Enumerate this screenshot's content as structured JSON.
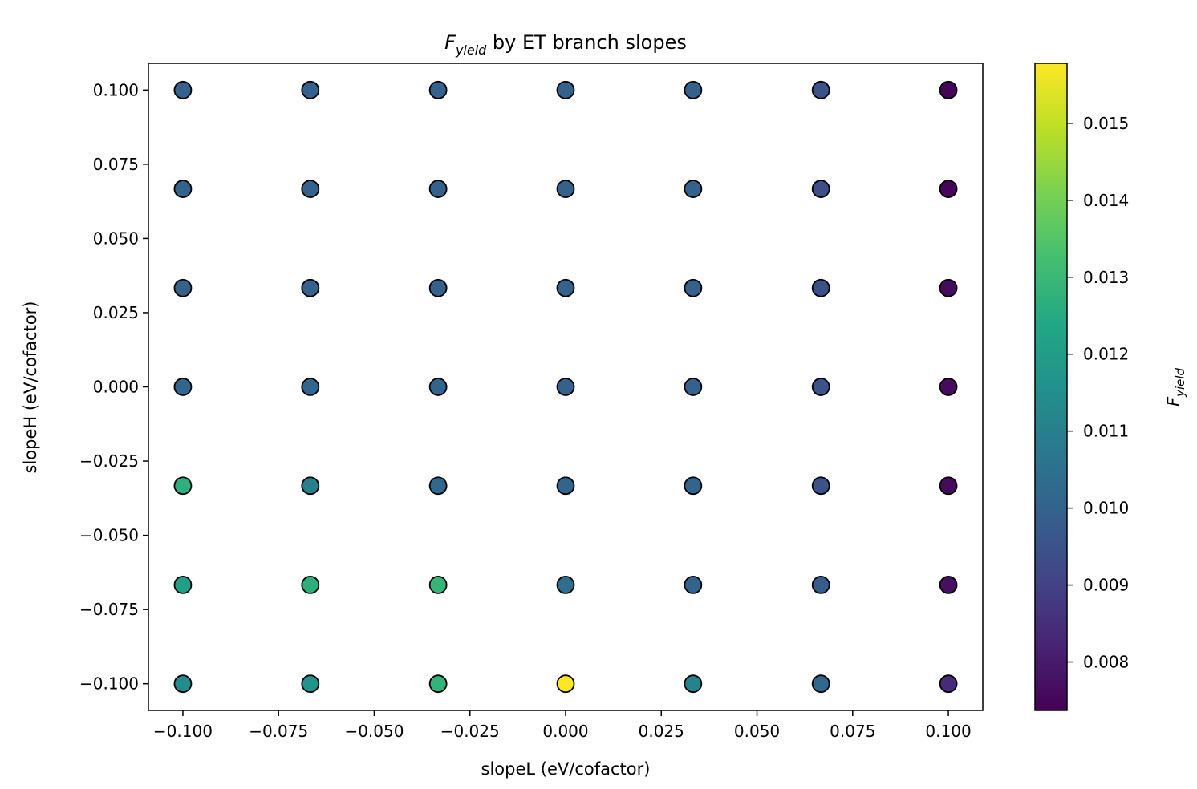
{
  "chart_data": {
    "type": "scatter",
    "title": {
      "symbol": "F",
      "subscript": "yield",
      "rest": " by ET branch slopes"
    },
    "xlabel": "slopeL (eV/cofactor)",
    "ylabel": "slopeH (eV/cofactor)",
    "colorbar_label": {
      "symbol": "F",
      "subscript": "yield"
    },
    "colormap": "viridis",
    "marker_edge_color": "#000000",
    "xlim": [
      -0.109,
      0.109
    ],
    "ylim": [
      -0.109,
      0.109
    ],
    "x_ticks": [
      -0.1,
      -0.075,
      -0.05,
      -0.025,
      0.0,
      0.025,
      0.05,
      0.075,
      0.1
    ],
    "x_tick_labels": [
      "−0.100",
      "−0.075",
      "−0.050",
      "−0.025",
      "0.000",
      "0.025",
      "0.050",
      "0.075",
      "0.100"
    ],
    "y_ticks": [
      0.1,
      0.075,
      0.05,
      0.025,
      0.0,
      -0.025,
      -0.05,
      -0.075,
      -0.1
    ],
    "y_tick_labels": [
      "0.100",
      "0.075",
      "0.050",
      "0.025",
      "0.000",
      "−0.025",
      "−0.050",
      "−0.075",
      "−0.100"
    ],
    "color_range": [
      0.00737,
      0.01578
    ],
    "colorbar_ticks": [
      0.015,
      0.014,
      0.013,
      0.012,
      0.011,
      0.01,
      0.009,
      0.008
    ],
    "colorbar_tick_labels": [
      "0.015",
      "0.014",
      "0.013",
      "0.012",
      "0.011",
      "0.010",
      "0.009",
      "0.008"
    ],
    "x": [
      -0.1,
      -0.0667,
      -0.0333,
      0.0,
      0.0333,
      0.0667,
      0.1
    ],
    "y": [
      0.1,
      0.0667,
      0.0333,
      0.0,
      -0.0333,
      -0.0667,
      -0.1
    ],
    "values": [
      [
        0.01,
        0.01,
        0.01,
        0.01,
        0.01,
        0.0095,
        0.0075
      ],
      [
        0.01,
        0.01,
        0.01,
        0.01,
        0.01,
        0.0094,
        0.0075
      ],
      [
        0.01,
        0.01,
        0.01,
        0.01,
        0.01,
        0.0094,
        0.0076
      ],
      [
        0.0101,
        0.0101,
        0.0101,
        0.01,
        0.01,
        0.0095,
        0.0076
      ],
      [
        0.0127,
        0.011,
        0.0102,
        0.0101,
        0.0101,
        0.0095,
        0.0076
      ],
      [
        0.0121,
        0.0127,
        0.0129,
        0.0104,
        0.0101,
        0.0098,
        0.0077
      ],
      [
        0.0114,
        0.0117,
        0.0128,
        0.0158,
        0.0111,
        0.0102,
        0.0084
      ]
    ]
  }
}
